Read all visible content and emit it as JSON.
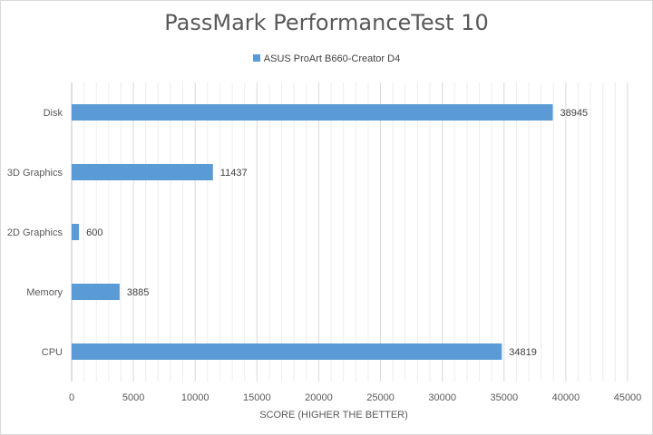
{
  "chart_data": {
    "type": "bar",
    "orientation": "horizontal",
    "title": "PassMark PerformanceTest 10",
    "xlabel": "SCORE (HIGHER THE BETTER)",
    "ylabel": "",
    "categories": [
      "Disk",
      "3D Graphics",
      "2D Graphics",
      "Memory",
      "CPU"
    ],
    "series": [
      {
        "name": "ASUS ProArt B660-Creator D4",
        "values": [
          38945,
          11437,
          600,
          3885,
          34819
        ],
        "color": "#5b9bd5"
      }
    ],
    "xlim": [
      0,
      45000
    ],
    "xticks": [
      0,
      5000,
      10000,
      15000,
      20000,
      25000,
      30000,
      35000,
      40000,
      45000
    ],
    "xtick_labels": [
      "0",
      "5000",
      "10000",
      "15000",
      "20000",
      "25000",
      "30000",
      "35000",
      "40000",
      "45000"
    ],
    "minor_gridlines_every": 1000,
    "grid": true,
    "legend_position": "top"
  }
}
